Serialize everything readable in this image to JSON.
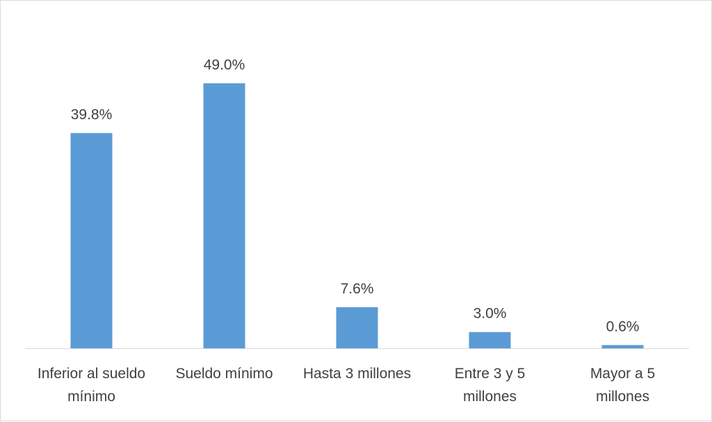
{
  "chart_data": {
    "type": "bar",
    "title": "",
    "xlabel": "",
    "ylabel": "",
    "ylim": [
      0,
      55
    ],
    "grid": false,
    "legend": "none",
    "bar_color": "#5b9bd5",
    "categories": [
      [
        "Inferior al sueldo",
        "mínimo"
      ],
      [
        "Sueldo mínimo"
      ],
      [
        "Hasta 3 millones"
      ],
      [
        "Entre 3 y 5",
        "millones"
      ],
      [
        "Mayor a 5",
        "millones"
      ]
    ],
    "values": [
      39.8,
      49.0,
      7.6,
      3.0,
      0.6
    ],
    "data_labels": [
      "39.8%",
      "49.0%",
      "7.6%",
      "3.0%",
      "0.6%"
    ]
  }
}
